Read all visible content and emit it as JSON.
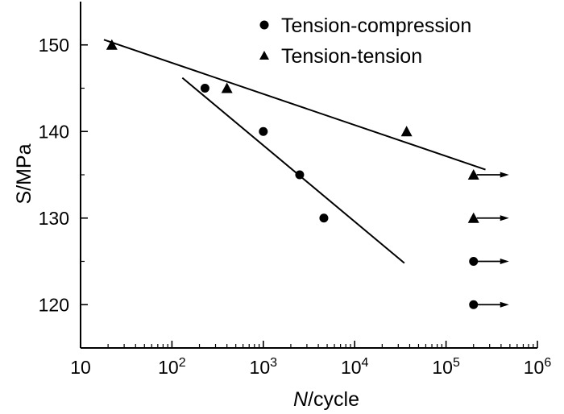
{
  "chart_data": {
    "type": "scatter",
    "title": "",
    "xlabel": "N/cycle",
    "xlabel_italic_part": "N",
    "xlabel_rest": "/cycle",
    "ylabel": "S/MPa",
    "xscale": "log",
    "xlim": [
      10,
      1000000
    ],
    "ylim": [
      115,
      155
    ],
    "xticks": [
      {
        "value": 10,
        "base": "10",
        "exp": ""
      },
      {
        "value": 100,
        "base": "10",
        "exp": "2"
      },
      {
        "value": 1000,
        "base": "10",
        "exp": "3"
      },
      {
        "value": 10000,
        "base": "10",
        "exp": "4"
      },
      {
        "value": 100000,
        "base": "10",
        "exp": "5"
      },
      {
        "value": 1000000,
        "base": "10",
        "exp": "6"
      }
    ],
    "yticks": [
      120,
      130,
      140,
      150
    ],
    "legend_position": "top-right",
    "series": [
      {
        "name": "Tension-compression",
        "marker": "circle",
        "points": [
          {
            "x": 230,
            "y": 145,
            "runout": false
          },
          {
            "x": 1000,
            "y": 140,
            "runout": false
          },
          {
            "x": 2500,
            "y": 135,
            "runout": false
          },
          {
            "x": 4600,
            "y": 130,
            "runout": false
          },
          {
            "x": 200000,
            "y": 125,
            "runout": true
          },
          {
            "x": 200000,
            "y": 120,
            "runout": true
          }
        ],
        "fit_line": {
          "x": [
            130,
            35000
          ],
          "y": [
            146.2,
            124.8
          ]
        }
      },
      {
        "name": "Tension-tension",
        "marker": "triangle",
        "points": [
          {
            "x": 22,
            "y": 150,
            "runout": false
          },
          {
            "x": 400,
            "y": 145,
            "runout": false
          },
          {
            "x": 37000,
            "y": 140,
            "runout": false
          },
          {
            "x": 200000,
            "y": 135,
            "runout": true
          },
          {
            "x": 200000,
            "y": 130,
            "runout": true
          }
        ],
        "fit_line": {
          "x": [
            18,
            270000
          ],
          "y": [
            150.6,
            135.6
          ]
        }
      }
    ]
  }
}
